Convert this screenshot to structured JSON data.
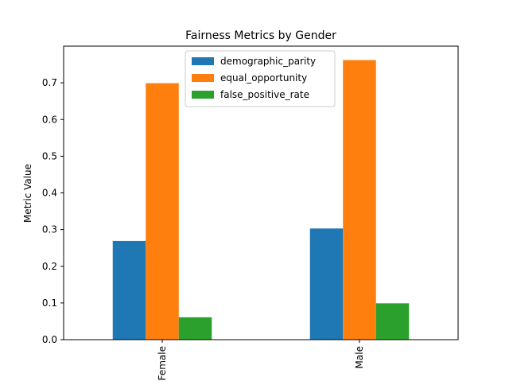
{
  "chart_data": {
    "type": "bar",
    "title": "Fairness Metrics by Gender",
    "xlabel": "",
    "ylabel": "Metric Value",
    "categories": [
      "Female",
      "Male"
    ],
    "series": [
      {
        "name": "demographic_parity",
        "values": [
          0.269,
          0.303
        ],
        "color": "#1f77b4"
      },
      {
        "name": "equal_opportunity",
        "values": [
          0.699,
          0.762
        ],
        "color": "#ff7f0e"
      },
      {
        "name": "false_positive_rate",
        "values": [
          0.061,
          0.099
        ],
        "color": "#2ca02c"
      }
    ],
    "ylim": [
      0,
      0.8
    ],
    "yticks": [
      "0.0",
      "0.1",
      "0.2",
      "0.3",
      "0.4",
      "0.5",
      "0.6",
      "0.7"
    ],
    "grid": false,
    "legend_position": "top-center"
  }
}
